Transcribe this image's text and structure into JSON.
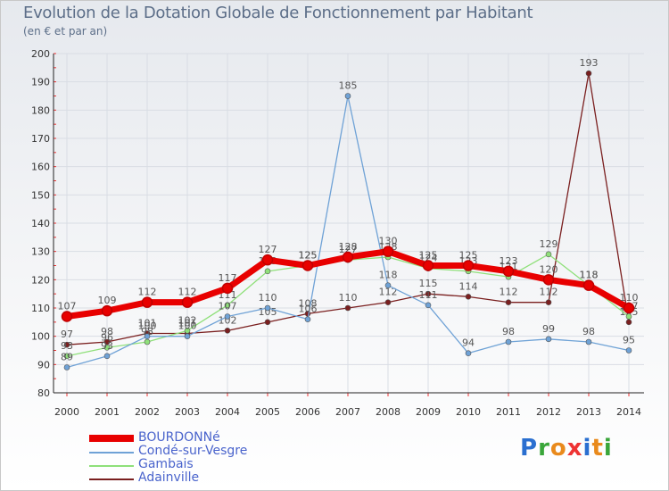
{
  "title": "Evolution de la Dotation Globale de Fonctionnement par Habitant",
  "subtitle": "(en € et par an)",
  "logo": {
    "text": "Proxiti",
    "colors": [
      "#2a6fd0",
      "#3aa63a",
      "#e98a1c",
      "#e33",
      "#2a6fd0",
      "#e98a1c",
      "#3aa63a"
    ]
  },
  "chart_data": {
    "type": "line",
    "title": "Evolution de la Dotation Globale de Fonctionnement par Habitant",
    "ylabel": "(en € et par an)",
    "ylim": [
      80,
      200
    ],
    "yticks": [
      "80",
      "90",
      "100",
      "110",
      "120",
      "130",
      "140",
      "150",
      "160",
      "170",
      "180",
      "190",
      "200"
    ],
    "categories": [
      "2000",
      "2001",
      "2002",
      "2003",
      "2004",
      "2005",
      "2006",
      "2007",
      "2008",
      "2009",
      "2010",
      "2011",
      "2012",
      "2013",
      "2014"
    ],
    "series": [
      {
        "name": "Adainville",
        "color": "#7a1f1f",
        "values": [
          97,
          98,
          101,
          101,
          102,
          105,
          108,
          110,
          112,
          115,
          114,
          112,
          112,
          193,
          105
        ],
        "labels": [
          "97",
          "98",
          "101",
          "101",
          "102",
          "105",
          "108",
          "110",
          "112",
          "115",
          "114",
          "112",
          "112",
          "193",
          "105"
        ]
      },
      {
        "name": "Gambais",
        "color": "#8fe07a",
        "values": [
          93,
          96,
          98,
          102,
          111,
          123,
          125,
          127,
          128,
          124,
          123,
          121,
          129,
          118,
          107
        ],
        "labels": [
          "93",
          "96",
          "98",
          "102",
          "111",
          "123",
          "125",
          "127",
          "128",
          "124",
          "123",
          "121",
          "129",
          "118",
          "107"
        ]
      },
      {
        "name": "Condé-sur-Vesgre",
        "color": "#6fa2d6",
        "values": [
          89,
          93,
          100,
          100,
          107,
          110,
          106,
          185,
          118,
          111,
          94,
          98,
          99,
          98,
          95
        ],
        "labels": [
          "89",
          "93",
          "100",
          "100",
          "107",
          "110",
          "106",
          "185",
          "118",
          "111",
          "94",
          "98",
          "99",
          "98",
          "95"
        ]
      },
      {
        "name": "BOURDONNé",
        "color": "#e80000",
        "values": [
          107,
          109,
          112,
          112,
          117,
          127,
          125,
          128,
          130,
          125,
          125,
          123,
          120,
          118,
          110
        ],
        "labels": [
          "107",
          "109",
          "112",
          "112",
          "117",
          "127",
          "125",
          "128",
          "130",
          "125",
          "125",
          "123",
          "120",
          "118",
          "110"
        ]
      }
    ]
  },
  "legend": [
    {
      "label": "BOURDONNé",
      "color": "#e80000"
    },
    {
      "label": "Condé-sur-Vesgre",
      "color": "#6fa2d6"
    },
    {
      "label": "Gambais",
      "color": "#8fe07a"
    },
    {
      "label": "Adainville",
      "color": "#7a1f1f"
    }
  ]
}
